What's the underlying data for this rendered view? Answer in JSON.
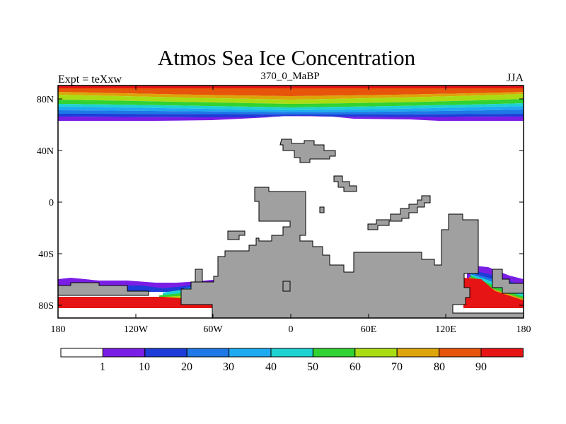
{
  "title": "Atmos Sea Ice Concentration",
  "subtitle": "370_0_MaBP",
  "experiment_label": "Expt = teXxw",
  "season": "JJA",
  "axes": {
    "x_ticks": [
      "180",
      "120W",
      "60W",
      "0",
      "60E",
      "120E",
      "180"
    ],
    "y_ticks": [
      "80N",
      "40N",
      "0",
      "40S",
      "80S"
    ]
  },
  "colorbar": {
    "labels": [
      "1",
      "10",
      "20",
      "30",
      "40",
      "50",
      "60",
      "70",
      "80",
      "90"
    ],
    "colors": [
      "#ffffff",
      "#7a1ee6",
      "#1e3cd8",
      "#1e78e6",
      "#1eaaf0",
      "#1ed2d2",
      "#32d232",
      "#aadc14",
      "#dca50a",
      "#e6550a",
      "#e61414"
    ]
  },
  "land_color": "#a0a0a0"
}
